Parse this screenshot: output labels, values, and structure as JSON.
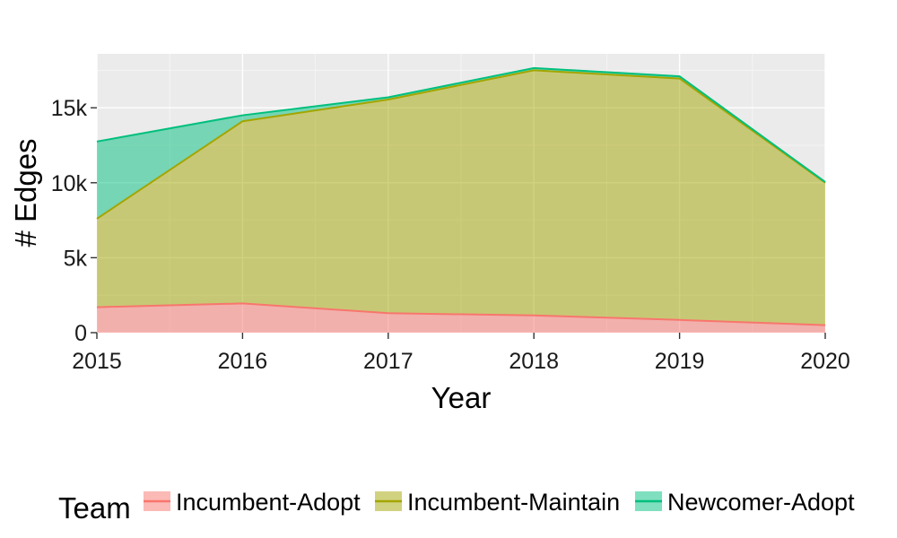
{
  "chart_data": {
    "type": "area",
    "stacked": true,
    "x": [
      2015,
      2016,
      2017,
      2018,
      2019,
      2020
    ],
    "series": [
      {
        "name": "Incumbent-Adopt",
        "values": [
          1700,
          1950,
          1300,
          1150,
          850,
          500
        ],
        "color": "#F8766D"
      },
      {
        "name": "Incumbent-Maintain",
        "values": [
          5900,
          12150,
          14250,
          16350,
          16100,
          9500
        ],
        "color": "#A3A500"
      },
      {
        "name": "Newcomer-Adopt",
        "values": [
          5150,
          400,
          150,
          150,
          150,
          50
        ],
        "color": "#00BF7D"
      }
    ],
    "xlabel": "Year",
    "ylabel": "# Edges",
    "xlim": [
      2015,
      2020
    ],
    "ylim": [
      0,
      18600
    ],
    "yticks": [
      0,
      5000,
      10000,
      15000
    ],
    "ytick_labels": [
      "0",
      "5k",
      "10k",
      "15k"
    ],
    "xtick_labels": [
      "2015",
      "2016",
      "2017",
      "2018",
      "2019",
      "2020"
    ],
    "grid": true,
    "legend_title": "Team",
    "legend_position": "bottom"
  }
}
